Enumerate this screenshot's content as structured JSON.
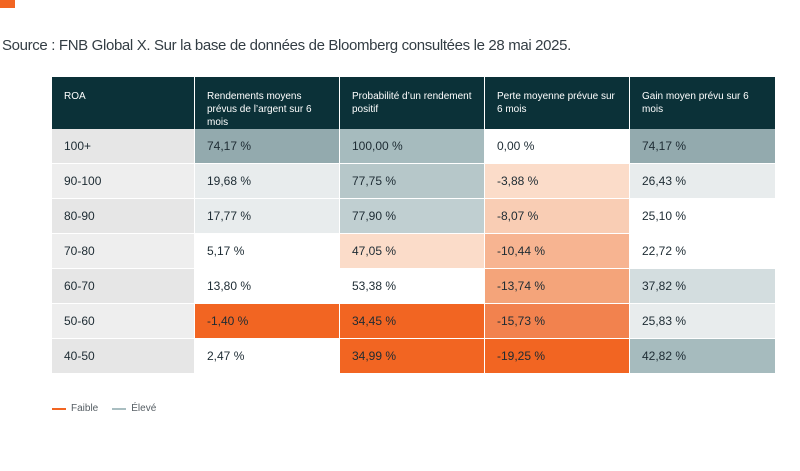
{
  "source": "Source : FNB Global X. Sur la base de données de Bloomberg consultées le 28 mai 2025.",
  "colors": {
    "accent": "#f26522",
    "header_bg": "#0b3138",
    "low": "#f26522",
    "high": "#a9bec1"
  },
  "chart_data": {
    "type": "table",
    "columns": [
      "ROA",
      "Rendements moyens prévus de l’argent sur 6 mois",
      "Probabilité d’un rendement positif",
      "Perte moyenne prévue sur 6 mois",
      "Gain moyen prévu sur 6 mois"
    ],
    "rows": [
      {
        "roa": "100+",
        "cells": [
          "74,17 %",
          "100,00 %",
          "0,00 %",
          "74,17 %"
        ]
      },
      {
        "roa": "90-100",
        "cells": [
          "19,68 %",
          "77,75 %",
          "-3,88 %",
          "26,43 %"
        ]
      },
      {
        "roa": "80-90",
        "cells": [
          "17,77 %",
          "77,90 %",
          "-8,07 %",
          "25,10 %"
        ]
      },
      {
        "roa": "70-80",
        "cells": [
          "5,17 %",
          "47,05 %",
          "-10,44 %",
          "22,72 %"
        ]
      },
      {
        "roa": "60-70",
        "cells": [
          "13,80 %",
          "53,38 %",
          "-13,74 %",
          "37,82 %"
        ]
      },
      {
        "roa": "50-60",
        "cells": [
          "-1,40 %",
          "34,45 %",
          "-15,73 %",
          "25,83 %"
        ]
      },
      {
        "roa": "40-50",
        "cells": [
          "2,47 %",
          "34,99 %",
          "-19,25 %",
          "42,82 %"
        ]
      }
    ],
    "cell_colors": [
      [
        "#93aaae",
        "#a6bbbe",
        "#ffffff",
        "#93aaae"
      ],
      [
        "#e8eced",
        "#b6c7c9",
        "#fbdcc9",
        "#e8eced"
      ],
      [
        "#e8eced",
        "#c0cfd1",
        "#f9cdb4",
        "#ffffff"
      ],
      [
        "#ffffff",
        "#fbdcc9",
        "#f7b491",
        "#ffffff"
      ],
      [
        "#ffffff",
        "#ffffff",
        "#f4a47a",
        "#d3dddf"
      ],
      [
        "#f26522",
        "#f26522",
        "#f2824e",
        "#e8eced"
      ],
      [
        "#ffffff",
        "#f26522",
        "#f26522",
        "#a6bbbe"
      ]
    ],
    "roa_colors": [
      "#e6e6e6",
      "#eeeeee",
      "#e6e6e6",
      "#eeeeee",
      "#e6e6e6",
      "#eeeeee",
      "#e6e6e6"
    ],
    "legend": [
      {
        "label": "Faible",
        "color": "#f26522"
      },
      {
        "label": "Élevé",
        "color": "#a9bec1"
      }
    ]
  }
}
